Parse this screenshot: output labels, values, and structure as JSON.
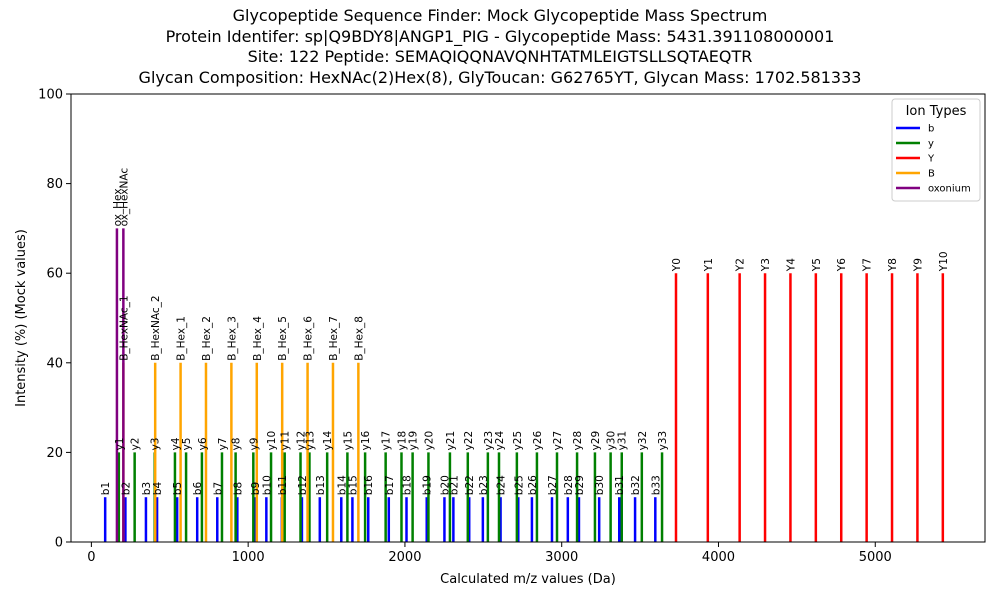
{
  "title_lines": [
    "Glycopeptide Sequence Finder: Mock Glycopeptide Mass Spectrum",
    "Protein Identifer: sp|Q9BDY8|ANGP1_PIG - Glycopeptide Mass: 5431.391108000001",
    "Site: 122 Peptide: SEMAQIQQNAVQNHTATMLEIGTSLLSQTAEQTR",
    "Glycan Composition: HexNAc(2)Hex(8), GlyToucan: G62765YT, Glycan Mass: 1702.581333"
  ],
  "chart_data": {
    "type": "bar",
    "xlabel": "Calculated m/z values (Da)",
    "ylabel": "Intensity (%) (Mock values)",
    "xlim": [
      -130,
      5700
    ],
    "ylim": [
      0,
      100
    ],
    "xticks": [
      0,
      1000,
      2000,
      3000,
      4000,
      5000
    ],
    "yticks": [
      0,
      20,
      40,
      60,
      80,
      100
    ],
    "legend": {
      "title": "Ion Types",
      "position": "top-right",
      "entries": [
        {
          "name": "b",
          "color": "#0000ff"
        },
        {
          "name": "y",
          "color": "#008000"
        },
        {
          "name": "Y",
          "color": "#ff0000"
        },
        {
          "name": "B",
          "color": "#ffa500"
        },
        {
          "name": "oxonium",
          "color": "#800080"
        }
      ]
    },
    "series": [
      {
        "name": "b",
        "color": "#0000ff",
        "intensity": 10,
        "peaks": [
          {
            "label": "b1",
            "mz": 88
          },
          {
            "label": "b2",
            "mz": 217
          },
          {
            "label": "b3",
            "mz": 348
          },
          {
            "label": "b4",
            "mz": 419
          },
          {
            "label": "b5",
            "mz": 547
          },
          {
            "label": "b6",
            "mz": 675
          },
          {
            "label": "b7",
            "mz": 803
          },
          {
            "label": "b8",
            "mz": 931
          },
          {
            "label": "b9",
            "mz": 1045
          },
          {
            "label": "b10",
            "mz": 1116
          },
          {
            "label": "b11",
            "mz": 1215
          },
          {
            "label": "b12",
            "mz": 1343
          },
          {
            "label": "b13",
            "mz": 1457
          },
          {
            "label": "b14",
            "mz": 1594
          },
          {
            "label": "b15",
            "mz": 1665
          },
          {
            "label": "b16",
            "mz": 1766
          },
          {
            "label": "b17",
            "mz": 1897
          },
          {
            "label": "b18",
            "mz": 2010
          },
          {
            "label": "b19",
            "mz": 2139
          },
          {
            "label": "b20",
            "mz": 2252
          },
          {
            "label": "b21",
            "mz": 2309
          },
          {
            "label": "b22",
            "mz": 2410
          },
          {
            "label": "b23",
            "mz": 2497
          },
          {
            "label": "b24",
            "mz": 2610
          },
          {
            "label": "b25",
            "mz": 2723
          },
          {
            "label": "b26",
            "mz": 2810
          },
          {
            "label": "b27",
            "mz": 2938
          },
          {
            "label": "b28",
            "mz": 3039
          },
          {
            "label": "b29",
            "mz": 3110
          },
          {
            "label": "b30",
            "mz": 3239
          },
          {
            "label": "b31",
            "mz": 3367
          },
          {
            "label": "b32",
            "mz": 3468
          },
          {
            "label": "b33",
            "mz": 3597
          }
        ]
      },
      {
        "name": "y",
        "color": "#008000",
        "intensity": 20,
        "peaks": [
          {
            "label": "y1",
            "mz": 175
          },
          {
            "label": "y2",
            "mz": 276
          },
          {
            "label": "y3",
            "mz": 404
          },
          {
            "label": "y4",
            "mz": 533
          },
          {
            "label": "y5",
            "mz": 604
          },
          {
            "label": "y6",
            "mz": 705
          },
          {
            "label": "y7",
            "mz": 833
          },
          {
            "label": "y8",
            "mz": 920
          },
          {
            "label": "y9",
            "mz": 1033
          },
          {
            "label": "y10",
            "mz": 1146
          },
          {
            "label": "y11",
            "mz": 1233
          },
          {
            "label": "y12",
            "mz": 1334
          },
          {
            "label": "y13",
            "mz": 1391
          },
          {
            "label": "y14",
            "mz": 1504
          },
          {
            "label": "y15",
            "mz": 1633
          },
          {
            "label": "y16",
            "mz": 1746
          },
          {
            "label": "y17",
            "mz": 1877
          },
          {
            "label": "y18",
            "mz": 1978
          },
          {
            "label": "y19",
            "mz": 2049
          },
          {
            "label": "y20",
            "mz": 2150
          },
          {
            "label": "y21",
            "mz": 2287
          },
          {
            "label": "y22",
            "mz": 2401
          },
          {
            "label": "y23",
            "mz": 2529
          },
          {
            "label": "y24",
            "mz": 2600
          },
          {
            "label": "y25",
            "mz": 2714
          },
          {
            "label": "y26",
            "mz": 2842
          },
          {
            "label": "y27",
            "mz": 2970
          },
          {
            "label": "y28",
            "mz": 3098
          },
          {
            "label": "y29",
            "mz": 3212
          },
          {
            "label": "y30",
            "mz": 3312
          },
          {
            "label": "y31",
            "mz": 3383
          },
          {
            "label": "y32",
            "mz": 3511
          },
          {
            "label": "y33",
            "mz": 3640
          }
        ]
      },
      {
        "name": "Y",
        "color": "#ff0000",
        "intensity": 60,
        "peaks": [
          {
            "label": "Y0",
            "mz": 3729
          },
          {
            "label": "Y1",
            "mz": 3932
          },
          {
            "label": "Y2",
            "mz": 4135
          },
          {
            "label": "Y3",
            "mz": 4297
          },
          {
            "label": "Y4",
            "mz": 4459
          },
          {
            "label": "Y5",
            "mz": 4621
          },
          {
            "label": "Y6",
            "mz": 4783
          },
          {
            "label": "Y7",
            "mz": 4945
          },
          {
            "label": "Y8",
            "mz": 5107
          },
          {
            "label": "Y9",
            "mz": 5269
          },
          {
            "label": "Y10",
            "mz": 5431
          }
        ]
      },
      {
        "name": "B",
        "color": "#ffa500",
        "intensity": 40,
        "peaks": [
          {
            "label": "B_HexNAc_1",
            "mz": 204
          },
          {
            "label": "B_HexNAc_2",
            "mz": 407
          },
          {
            "label": "B_Hex_1",
            "mz": 569
          },
          {
            "label": "B_Hex_2",
            "mz": 731
          },
          {
            "label": "B_Hex_3",
            "mz": 893
          },
          {
            "label": "B_Hex_4",
            "mz": 1055
          },
          {
            "label": "B_Hex_5",
            "mz": 1217
          },
          {
            "label": "B_Hex_6",
            "mz": 1379
          },
          {
            "label": "B_Hex_7",
            "mz": 1541
          },
          {
            "label": "B_Hex_8",
            "mz": 1703
          }
        ]
      },
      {
        "name": "oxonium",
        "color": "#800080",
        "intensity": 70,
        "peaks": [
          {
            "label": "ox_Hex",
            "mz": 163
          },
          {
            "label": "ox_HexNAc",
            "mz": 204
          }
        ]
      }
    ]
  }
}
